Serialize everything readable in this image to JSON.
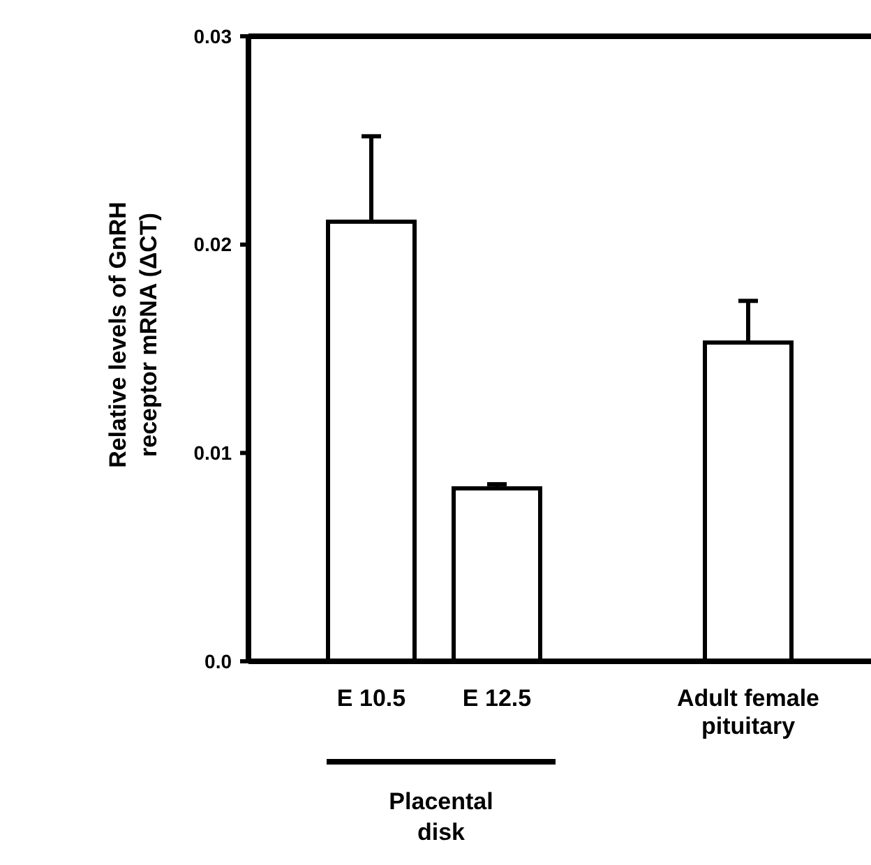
{
  "chart_data": {
    "type": "bar",
    "ylabel": "Relative levels of GnRH receptor mRNA (ΔCT)",
    "categories": [
      "E 10.5",
      "E 12.5",
      null,
      "Adult female pituitary"
    ],
    "values": [
      0.0211,
      0.0083,
      null,
      0.0153
    ],
    "errors": [
      [
        0.0211,
        0.0252
      ],
      [
        0.0083,
        0.0085
      ],
      null,
      [
        0.0153,
        0.0173
      ]
    ],
    "color": "#ffffff",
    "ylim": [
      0,
      0.03
    ],
    "yticks": [
      {
        "value": 0,
        "label": "0.0"
      },
      0.01,
      0.02,
      0.03
    ],
    "annotations": [
      "Placental disk"
    ],
    "grid": false
  }
}
